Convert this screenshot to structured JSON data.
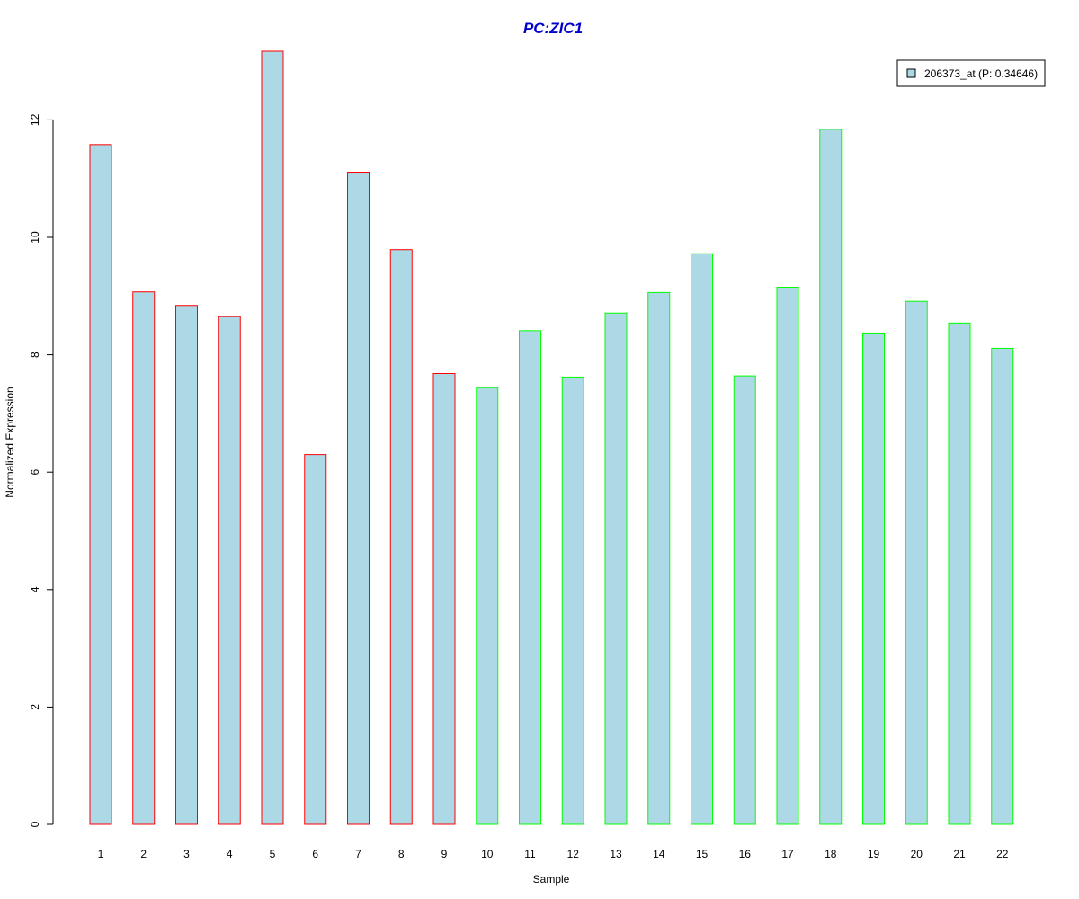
{
  "colors": {
    "bar_fill": "#add8e6",
    "group1_border": "#ff0000",
    "group2_border": "#00ff00",
    "title": "#0000cd"
  },
  "chart_data": {
    "type": "bar",
    "title": "PC:ZIC1",
    "xlabel": "Sample",
    "ylabel": "Normalized Expression",
    "ylim": [
      0,
      13.2
    ],
    "yticks": [
      "0",
      "2",
      "4",
      "6",
      "8",
      "10",
      "12"
    ],
    "categories": [
      "1",
      "2",
      "3",
      "4",
      "5",
      "6",
      "7",
      "8",
      "9",
      "10",
      "11",
      "12",
      "13",
      "14",
      "15",
      "16",
      "17",
      "18",
      "19",
      "20",
      "21",
      "22"
    ],
    "series": [
      {
        "name": "206373_at (P: 0.34646)",
        "values": [
          11.58,
          9.07,
          8.84,
          8.65,
          13.17,
          6.3,
          11.11,
          9.79,
          7.68,
          7.44,
          8.41,
          7.62,
          8.71,
          9.06,
          9.72,
          7.64,
          9.15,
          11.84,
          8.37,
          8.91,
          8.54,
          8.11
        ]
      }
    ],
    "bar_groups": [
      "red",
      "red",
      "red",
      "red",
      "red",
      "red",
      "red",
      "red",
      "red",
      "green",
      "green",
      "green",
      "green",
      "green",
      "green",
      "green",
      "green",
      "green",
      "green",
      "green",
      "green",
      "green"
    ],
    "legend": {
      "label": "206373_at (P: 0.34646)",
      "position": "top-right"
    },
    "grid": false
  }
}
